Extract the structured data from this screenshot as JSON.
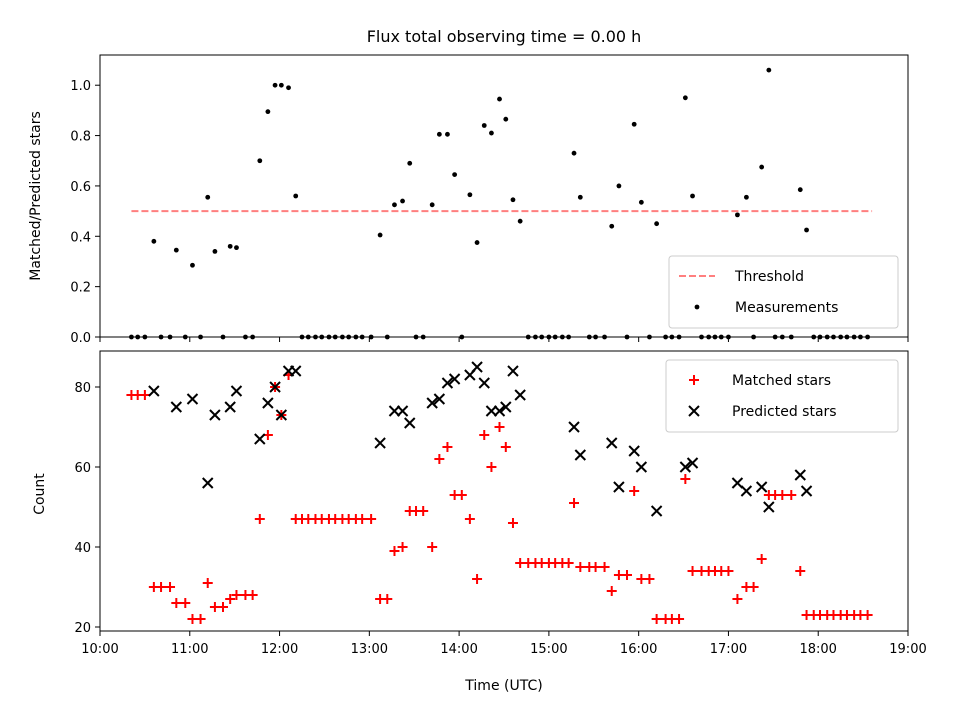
{
  "chart_data": [
    {
      "type": "scatter",
      "title": "Flux total observing time = 0.00 h",
      "ylabel": "Matched/Predicted stars",
      "xlabel": "",
      "xlim": [
        10.0,
        19.0
      ],
      "ylim": [
        0.0,
        1.12
      ],
      "yticks": [
        "0.0",
        "0.2",
        "0.4",
        "0.6",
        "0.8",
        "1.0"
      ],
      "legend_position": "lower-right",
      "threshold": {
        "name": "Threshold",
        "value": 0.5,
        "x_range": [
          10.35,
          18.6
        ],
        "color": "#ff7f7f",
        "style": "dashed"
      },
      "series": [
        {
          "name": "Measurements",
          "color": "#000000",
          "marker": "dot",
          "points": [
            [
              10.35,
              0
            ],
            [
              10.42,
              0
            ],
            [
              10.5,
              0
            ],
            [
              10.6,
              0.38
            ],
            [
              10.68,
              0
            ],
            [
              10.78,
              0
            ],
            [
              10.85,
              0.345
            ],
            [
              10.95,
              0
            ],
            [
              11.03,
              0.285
            ],
            [
              11.12,
              0
            ],
            [
              11.2,
              0.555
            ],
            [
              11.28,
              0.34
            ],
            [
              11.37,
              0
            ],
            [
              11.45,
              0.36
            ],
            [
              11.52,
              0.355
            ],
            [
              11.62,
              0
            ],
            [
              11.7,
              0
            ],
            [
              11.78,
              0.7
            ],
            [
              11.87,
              0.895
            ],
            [
              11.95,
              1.0
            ],
            [
              12.02,
              1.0
            ],
            [
              12.1,
              0.99
            ],
            [
              12.18,
              0.56
            ],
            [
              12.25,
              0
            ],
            [
              12.32,
              0
            ],
            [
              12.4,
              0
            ],
            [
              12.47,
              0
            ],
            [
              12.55,
              0
            ],
            [
              12.62,
              0
            ],
            [
              12.7,
              0
            ],
            [
              12.77,
              0
            ],
            [
              12.85,
              0
            ],
            [
              12.92,
              0
            ],
            [
              13.02,
              0
            ],
            [
              13.12,
              0.405
            ],
            [
              13.2,
              0
            ],
            [
              13.28,
              0.525
            ],
            [
              13.37,
              0.54
            ],
            [
              13.45,
              0.69
            ],
            [
              13.52,
              0
            ],
            [
              13.6,
              0
            ],
            [
              13.7,
              0.525
            ],
            [
              13.78,
              0.805
            ],
            [
              13.87,
              0.805
            ],
            [
              13.95,
              0.645
            ],
            [
              14.03,
              0
            ],
            [
              14.12,
              0.565
            ],
            [
              14.2,
              0.375
            ],
            [
              14.28,
              0.84
            ],
            [
              14.36,
              0.81
            ],
            [
              14.45,
              0.945
            ],
            [
              14.52,
              0.865
            ],
            [
              14.6,
              0.545
            ],
            [
              14.68,
              0.46
            ],
            [
              14.77,
              0
            ],
            [
              14.85,
              0
            ],
            [
              14.92,
              0
            ],
            [
              15.0,
              0
            ],
            [
              15.07,
              0
            ],
            [
              15.15,
              0
            ],
            [
              15.22,
              0
            ],
            [
              15.28,
              0.73
            ],
            [
              15.35,
              0.555
            ],
            [
              15.45,
              0
            ],
            [
              15.52,
              0
            ],
            [
              15.62,
              0
            ],
            [
              15.7,
              0.44
            ],
            [
              15.78,
              0.6
            ],
            [
              15.87,
              0
            ],
            [
              15.95,
              0.845
            ],
            [
              16.03,
              0.535
            ],
            [
              16.12,
              0
            ],
            [
              16.2,
              0.45
            ],
            [
              16.3,
              0
            ],
            [
              16.37,
              0
            ],
            [
              16.45,
              0
            ],
            [
              16.52,
              0.95
            ],
            [
              16.6,
              0.56
            ],
            [
              16.7,
              0
            ],
            [
              16.78,
              0
            ],
            [
              16.85,
              0
            ],
            [
              16.92,
              0
            ],
            [
              17.0,
              0
            ],
            [
              17.1,
              0.485
            ],
            [
              17.2,
              0.555
            ],
            [
              17.28,
              0
            ],
            [
              17.37,
              0.675
            ],
            [
              17.45,
              1.06
            ],
            [
              17.52,
              0
            ],
            [
              17.6,
              0
            ],
            [
              17.7,
              0
            ],
            [
              17.8,
              0.585
            ],
            [
              17.87,
              0.425
            ],
            [
              17.95,
              0
            ],
            [
              18.02,
              0
            ],
            [
              18.1,
              0
            ],
            [
              18.17,
              0
            ],
            [
              18.25,
              0
            ],
            [
              18.32,
              0
            ],
            [
              18.4,
              0
            ],
            [
              18.47,
              0
            ],
            [
              18.55,
              0
            ]
          ]
        }
      ]
    },
    {
      "type": "scatter",
      "title": "",
      "ylabel": "Count",
      "xlabel": "Time (UTC)",
      "xlim": [
        10.0,
        19.0
      ],
      "ylim": [
        19.0,
        89.0
      ],
      "yticks": [
        "20",
        "40",
        "60",
        "80"
      ],
      "xticks": [
        "10:00",
        "11:00",
        "12:00",
        "13:00",
        "14:00",
        "15:00",
        "16:00",
        "17:00",
        "18:00",
        "19:00"
      ],
      "legend_position": "upper-right",
      "series": [
        {
          "name": "Matched stars",
          "color": "#ff0000",
          "marker": "plus",
          "points": [
            [
              10.35,
              78
            ],
            [
              10.42,
              78
            ],
            [
              10.5,
              78
            ],
            [
              10.6,
              30
            ],
            [
              10.68,
              30
            ],
            [
              10.78,
              30
            ],
            [
              10.85,
              26
            ],
            [
              10.95,
              26
            ],
            [
              11.03,
              22
            ],
            [
              11.12,
              22
            ],
            [
              11.2,
              31
            ],
            [
              11.28,
              25
            ],
            [
              11.37,
              25
            ],
            [
              11.45,
              27
            ],
            [
              11.52,
              28
            ],
            [
              11.62,
              28
            ],
            [
              11.7,
              28
            ],
            [
              11.78,
              47
            ],
            [
              11.87,
              68
            ],
            [
              11.95,
              80
            ],
            [
              12.02,
              73
            ],
            [
              12.1,
              83
            ],
            [
              12.18,
              47
            ],
            [
              12.25,
              47
            ],
            [
              12.32,
              47
            ],
            [
              12.4,
              47
            ],
            [
              12.47,
              47
            ],
            [
              12.55,
              47
            ],
            [
              12.62,
              47
            ],
            [
              12.7,
              47
            ],
            [
              12.77,
              47
            ],
            [
              12.85,
              47
            ],
            [
              12.92,
              47
            ],
            [
              13.02,
              47
            ],
            [
              13.12,
              27
            ],
            [
              13.2,
              27
            ],
            [
              13.28,
              39
            ],
            [
              13.37,
              40
            ],
            [
              13.45,
              49
            ],
            [
              13.52,
              49
            ],
            [
              13.6,
              49
            ],
            [
              13.7,
              40
            ],
            [
              13.78,
              62
            ],
            [
              13.87,
              65
            ],
            [
              13.95,
              53
            ],
            [
              14.03,
              53
            ],
            [
              14.12,
              47
            ],
            [
              14.2,
              32
            ],
            [
              14.28,
              68
            ],
            [
              14.36,
              60
            ],
            [
              14.45,
              70
            ],
            [
              14.52,
              65
            ],
            [
              14.6,
              46
            ],
            [
              14.68,
              36
            ],
            [
              14.77,
              36
            ],
            [
              14.85,
              36
            ],
            [
              14.92,
              36
            ],
            [
              15.0,
              36
            ],
            [
              15.07,
              36
            ],
            [
              15.15,
              36
            ],
            [
              15.22,
              36
            ],
            [
              15.28,
              51
            ],
            [
              15.35,
              35
            ],
            [
              15.45,
              35
            ],
            [
              15.52,
              35
            ],
            [
              15.62,
              35
            ],
            [
              15.7,
              29
            ],
            [
              15.78,
              33
            ],
            [
              15.87,
              33
            ],
            [
              15.95,
              54
            ],
            [
              16.03,
              32
            ],
            [
              16.12,
              32
            ],
            [
              16.2,
              22
            ],
            [
              16.3,
              22
            ],
            [
              16.37,
              22
            ],
            [
              16.45,
              22
            ],
            [
              16.52,
              57
            ],
            [
              16.6,
              34
            ],
            [
              16.7,
              34
            ],
            [
              16.78,
              34
            ],
            [
              16.85,
              34
            ],
            [
              16.92,
              34
            ],
            [
              17.0,
              34
            ],
            [
              17.1,
              27
            ],
            [
              17.2,
              30
            ],
            [
              17.28,
              30
            ],
            [
              17.37,
              37
            ],
            [
              17.45,
              53
            ],
            [
              17.52,
              53
            ],
            [
              17.6,
              53
            ],
            [
              17.7,
              53
            ],
            [
              17.8,
              34
            ],
            [
              17.87,
              23
            ],
            [
              17.95,
              23
            ],
            [
              18.02,
              23
            ],
            [
              18.1,
              23
            ],
            [
              18.17,
              23
            ],
            [
              18.25,
              23
            ],
            [
              18.32,
              23
            ],
            [
              18.4,
              23
            ],
            [
              18.47,
              23
            ],
            [
              18.55,
              23
            ]
          ]
        },
        {
          "name": "Predicted stars",
          "color": "#000000",
          "marker": "x",
          "points": [
            [
              10.6,
              79
            ],
            [
              10.85,
              75
            ],
            [
              11.03,
              77
            ],
            [
              11.2,
              56
            ],
            [
              11.28,
              73
            ],
            [
              11.45,
              75
            ],
            [
              11.52,
              79
            ],
            [
              11.78,
              67
            ],
            [
              11.87,
              76
            ],
            [
              11.95,
              80
            ],
            [
              12.02,
              73
            ],
            [
              12.1,
              84
            ],
            [
              12.18,
              84
            ],
            [
              13.12,
              66
            ],
            [
              13.28,
              74
            ],
            [
              13.37,
              74
            ],
            [
              13.45,
              71
            ],
            [
              13.7,
              76
            ],
            [
              13.78,
              77
            ],
            [
              13.87,
              81
            ],
            [
              13.95,
              82
            ],
            [
              14.12,
              83
            ],
            [
              14.2,
              85
            ],
            [
              14.28,
              81
            ],
            [
              14.36,
              74
            ],
            [
              14.45,
              74
            ],
            [
              14.52,
              75
            ],
            [
              14.6,
              84
            ],
            [
              14.68,
              78
            ],
            [
              15.28,
              70
            ],
            [
              15.35,
              63
            ],
            [
              15.7,
              66
            ],
            [
              15.78,
              55
            ],
            [
              15.95,
              64
            ],
            [
              16.03,
              60
            ],
            [
              16.2,
              49
            ],
            [
              16.52,
              60
            ],
            [
              16.6,
              61
            ],
            [
              17.1,
              56
            ],
            [
              17.2,
              54
            ],
            [
              17.37,
              55
            ],
            [
              17.45,
              50
            ],
            [
              17.8,
              58
            ],
            [
              17.87,
              54
            ]
          ]
        }
      ]
    }
  ]
}
